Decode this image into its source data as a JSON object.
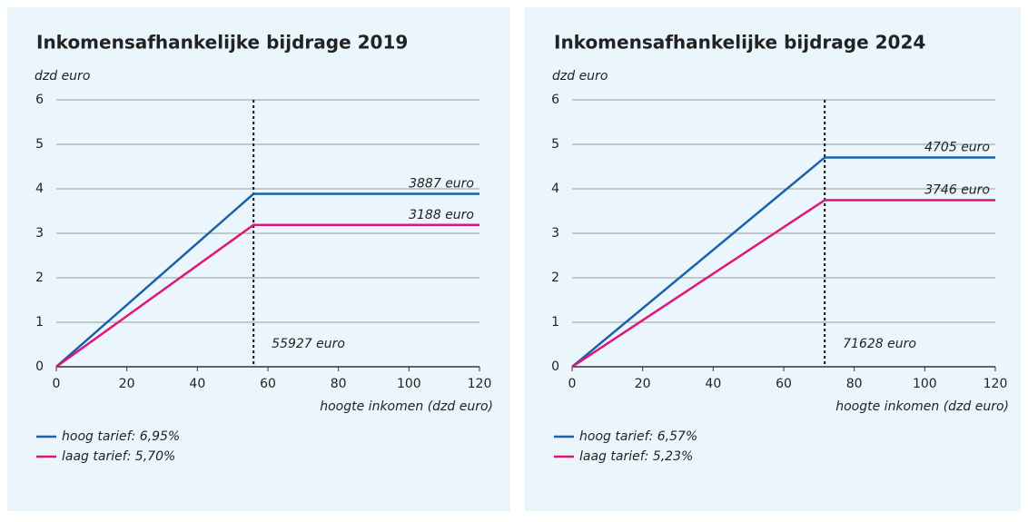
{
  "chart_data": [
    {
      "type": "line",
      "title": "Inkomensafhankelijke bijdrage 2019",
      "y_label": "dzd euro",
      "x_label": "hoogte inkomen (dzd euro)",
      "x": [
        0,
        55.927,
        120
      ],
      "series": [
        {
          "name": "hoog tarief: 6,95%",
          "color": "#1a62a8",
          "values": [
            0,
            3.887,
            3.887
          ]
        },
        {
          "name": "laag tarief: 5,70%",
          "color": "#e0157a",
          "values": [
            0,
            3.188,
            3.188
          ]
        }
      ],
      "annotations": [
        {
          "text": "3887 euro",
          "y": 3.887
        },
        {
          "text": "3188 euro",
          "y": 3.188
        }
      ],
      "vline": {
        "x": 55.927,
        "text": "55927 euro"
      },
      "xlim": [
        0,
        120
      ],
      "xticks": [
        0,
        20,
        40,
        60,
        80,
        100,
        120
      ],
      "ylim": [
        0,
        6
      ],
      "yticks": [
        0,
        1,
        2,
        3,
        4,
        5,
        6
      ],
      "grid": true
    },
    {
      "type": "line",
      "title": "Inkomensafhankelijke bijdrage 2024",
      "y_label": "dzd euro",
      "x_label": "hoogte inkomen (dzd euro)",
      "x": [
        0,
        71.628,
        120
      ],
      "series": [
        {
          "name": "hoog tarief: 6,57%",
          "color": "#1a62a8",
          "values": [
            0,
            4.705,
            4.705
          ]
        },
        {
          "name": "laag tarief: 5,23%",
          "color": "#e0157a",
          "values": [
            0,
            3.746,
            3.746
          ]
        }
      ],
      "annotations": [
        {
          "text": "4705 euro",
          "y": 4.705
        },
        {
          "text": "3746 euro",
          "y": 3.746
        }
      ],
      "vline": {
        "x": 71.628,
        "text": "71628 euro"
      },
      "xlim": [
        0,
        120
      ],
      "xticks": [
        0,
        20,
        40,
        60,
        80,
        100,
        120
      ],
      "ylim": [
        0,
        6
      ],
      "yticks": [
        0,
        1,
        2,
        3,
        4,
        5,
        6
      ],
      "grid": true
    }
  ]
}
